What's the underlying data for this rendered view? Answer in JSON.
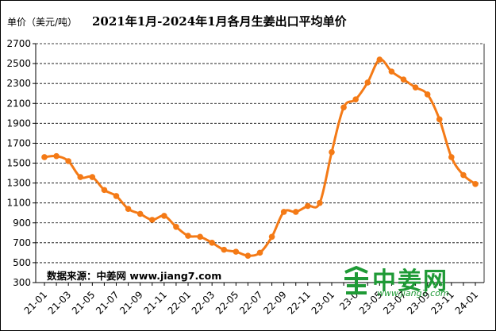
{
  "header": {
    "title": "2021年1月-2024年1月各月生姜出口平均单价",
    "unit_label": "单价（美元/吨）"
  },
  "source": {
    "text": "数据来源：中姜网 www.jiang7.com"
  },
  "logo": {
    "name": "中姜网",
    "url": "www.jiang7.com",
    "color": "#1f9a36"
  },
  "chart_data": {
    "type": "line",
    "title": "2021年1月-2024年1月各月生姜出口平均单价",
    "ylabel": "单价（美元/吨）",
    "xlabel": "",
    "ylim": [
      300,
      2700
    ],
    "yticks": [
      300,
      500,
      700,
      900,
      1100,
      1300,
      1500,
      1700,
      1900,
      2100,
      2300,
      2500,
      2700
    ],
    "grid": "horizontal dashed",
    "line_color": "#f47a16",
    "x": [
      "21-01",
      "21-02",
      "21-03",
      "21-04",
      "21-05",
      "21-06",
      "21-07",
      "21-08",
      "21-09",
      "21-10",
      "21-11",
      "21-12",
      "22-01",
      "22-02",
      "22-03",
      "22-04",
      "22-05",
      "22-06",
      "22-07",
      "22-08",
      "22-09",
      "22-10",
      "22-11",
      "22-12",
      "23-01",
      "23-02",
      "23-03",
      "23-04",
      "23-05",
      "23-06",
      "23-07",
      "23-08",
      "23-09",
      "23-10",
      "23-11",
      "23-12",
      "24-01"
    ],
    "xtick_labels": [
      "21-01",
      "21-03",
      "21-05",
      "21-07",
      "21-09",
      "21-11",
      "22-01",
      "22-03",
      "22-05",
      "22-07",
      "22-09",
      "22-11",
      "23-01",
      "23-03",
      "23-05",
      "23-07",
      "23-09",
      "23-11",
      "24-01"
    ],
    "xtick_labels_shown": [
      "21-01",
      "21-03",
      "21-05",
      "21-07",
      "21-09",
      "21-11",
      "22-01",
      "22-03",
      "22-05",
      "22-07",
      "22-09",
      "22-11",
      "23-01",
      "23-0",
      "23-05",
      "23-07",
      "23-09",
      "23-11",
      "24-01"
    ],
    "series": [
      {
        "values": [
          1560,
          1570,
          1520,
          1360,
          1360,
          1230,
          1170,
          1040,
          990,
          930,
          970,
          860,
          770,
          760,
          700,
          630,
          610,
          570,
          600,
          760,
          1010,
          1010,
          1070,
          1100,
          1610,
          2060,
          2140,
          2310,
          2540,
          2420,
          2340,
          2260,
          2190,
          1940,
          1560,
          1380,
          1290
        ]
      }
    ]
  }
}
